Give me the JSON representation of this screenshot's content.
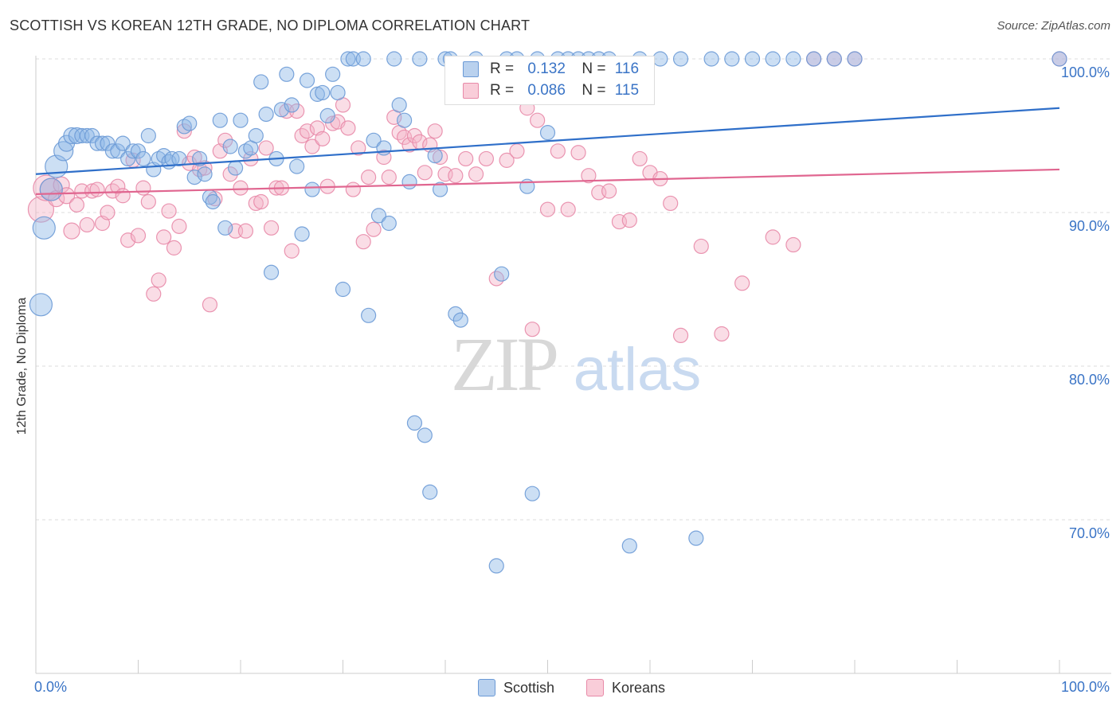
{
  "title": "SCOTTISH VS KOREAN 12TH GRADE, NO DIPLOMA CORRELATION CHART",
  "source": "Source: ZipAtlas.com",
  "colors": {
    "scottish": "#8fb8e6",
    "scottish_edge": "#6b9ad6",
    "korean": "#f4b3c7",
    "korean_edge": "#e88aa8",
    "scottish_line": "#2f6fc9",
    "korean_line": "#e06690",
    "axis_value": "#3a74c6",
    "grid": "#dddddd"
  },
  "legend": {
    "rows": [
      {
        "r_label": "R = ",
        "r_value": "0.132",
        "n_label": "N = ",
        "n_value": "116"
      },
      {
        "r_label": "R = ",
        "r_value": "0.086",
        "n_label": "N = ",
        "n_value": "115"
      }
    ]
  },
  "watermark": {
    "zip": "ZIP",
    "atlas": "atlas"
  },
  "chart_data": {
    "type": "scatter",
    "title": "SCOTTISH VS KOREAN 12TH GRADE, NO DIPLOMA CORRELATION CHART",
    "xlabel": "",
    "ylabel": "12th Grade, No Diploma",
    "xlim": [
      0,
      100
    ],
    "ylim": [
      60,
      101
    ],
    "x_tick_labels": [
      "0.0%",
      "100.0%"
    ],
    "y_ticks": [
      70,
      80,
      90,
      100
    ],
    "y_tick_labels": [
      "70.0%",
      "80.0%",
      "90.0%",
      "100.0%"
    ],
    "grid": true,
    "series": [
      {
        "name": "Scottish",
        "r": 0.132,
        "n": 116,
        "trend": [
          [
            0,
            92.5
          ],
          [
            100,
            96.8
          ]
        ],
        "points": [
          [
            0.5,
            84,
            14
          ],
          [
            0.8,
            89,
            14
          ],
          [
            1.5,
            91.5,
            14
          ],
          [
            2,
            93,
            14
          ],
          [
            2.7,
            94,
            12
          ],
          [
            3,
            94.5,
            10
          ],
          [
            3.5,
            95,
            10
          ],
          [
            4,
            95,
            10
          ],
          [
            4.5,
            95,
            9
          ],
          [
            5,
            95,
            9
          ],
          [
            5.5,
            95,
            9
          ],
          [
            6,
            94.5,
            9
          ],
          [
            6.5,
            94.5,
            9
          ],
          [
            7,
            94.5,
            9
          ],
          [
            7.5,
            94,
            9
          ],
          [
            8,
            94,
            9
          ],
          [
            8.5,
            94.5,
            9
          ],
          [
            9,
            93.5,
            9
          ],
          [
            9.5,
            94,
            9
          ],
          [
            10,
            94,
            9
          ],
          [
            10.5,
            93.5,
            9
          ],
          [
            11,
            95,
            9
          ],
          [
            11.5,
            92.8,
            9
          ],
          [
            12,
            93.5,
            9
          ],
          [
            12.5,
            93.7,
            9
          ],
          [
            13,
            93.3,
            9
          ],
          [
            13.3,
            93.5,
            9
          ],
          [
            14,
            93.5,
            9
          ],
          [
            14.5,
            95.6,
            9
          ],
          [
            15,
            95.8,
            9
          ],
          [
            15.5,
            92.3,
            9
          ],
          [
            16,
            93.5,
            9
          ],
          [
            16.5,
            92.5,
            9
          ],
          [
            17,
            91,
            9
          ],
          [
            17.3,
            90.7,
            9
          ],
          [
            18,
            96,
            9
          ],
          [
            18.5,
            89,
            9
          ],
          [
            19,
            94.3,
            9
          ],
          [
            19.5,
            92.9,
            9
          ],
          [
            20,
            96,
            9
          ],
          [
            20.5,
            94,
            9
          ],
          [
            21,
            94.2,
            9
          ],
          [
            21.5,
            95,
            9
          ],
          [
            22,
            98.5,
            9
          ],
          [
            22.5,
            96.4,
            9
          ],
          [
            23,
            86.1,
            9
          ],
          [
            23.5,
            93.5,
            9
          ],
          [
            24,
            96.7,
            9
          ],
          [
            24.5,
            99,
            9
          ],
          [
            25,
            97,
            9
          ],
          [
            25.5,
            93,
            9
          ],
          [
            26,
            88.6,
            9
          ],
          [
            26.5,
            98.6,
            9
          ],
          [
            27,
            91.5,
            9
          ],
          [
            27.5,
            97.7,
            9
          ],
          [
            28,
            97.8,
            9
          ],
          [
            28.5,
            96.3,
            9
          ],
          [
            29,
            99,
            9
          ],
          [
            29.5,
            97.8,
            9
          ],
          [
            30,
            85,
            9
          ],
          [
            30.5,
            100,
            9
          ],
          [
            31,
            100,
            9
          ],
          [
            32,
            100,
            9
          ],
          [
            32.5,
            83.3,
            9
          ],
          [
            33,
            94.7,
            9
          ],
          [
            33.5,
            89.8,
            9
          ],
          [
            34,
            94.2,
            9
          ],
          [
            34.5,
            89.3,
            9
          ],
          [
            35,
            100,
            9
          ],
          [
            35.5,
            97,
            9
          ],
          [
            36,
            96,
            9
          ],
          [
            36.5,
            92,
            9
          ],
          [
            37,
            76.3,
            9
          ],
          [
            37.5,
            100,
            9
          ],
          [
            38,
            75.5,
            9
          ],
          [
            38.5,
            71.8,
            9
          ],
          [
            39,
            93.7,
            9
          ],
          [
            39.5,
            91.5,
            9
          ],
          [
            40,
            100,
            9
          ],
          [
            40.5,
            100,
            9
          ],
          [
            41,
            83.4,
            9
          ],
          [
            41.5,
            83,
            9
          ],
          [
            42,
            97.5,
            9
          ],
          [
            43,
            100,
            9
          ],
          [
            44,
            98.5,
            9
          ],
          [
            45,
            67,
            9
          ],
          [
            45.5,
            86,
            9
          ],
          [
            46,
            100,
            9
          ],
          [
            47,
            100,
            9
          ],
          [
            48,
            91.7,
            9
          ],
          [
            48.5,
            71.7,
            9
          ],
          [
            49,
            100,
            9
          ],
          [
            50,
            95.2,
            9
          ],
          [
            51,
            100,
            9
          ],
          [
            52,
            100,
            9
          ],
          [
            53,
            100,
            9
          ],
          [
            54,
            100,
            9
          ],
          [
            55,
            100,
            9
          ],
          [
            56,
            100,
            9
          ],
          [
            58,
            68.3,
            9
          ],
          [
            59,
            100,
            9
          ],
          [
            61,
            100,
            9
          ],
          [
            63,
            100,
            9
          ],
          [
            64.5,
            68.8,
            9
          ],
          [
            66,
            100,
            9
          ],
          [
            68,
            100,
            9
          ],
          [
            70,
            100,
            9
          ],
          [
            72,
            100,
            9
          ],
          [
            74,
            100,
            9
          ],
          [
            76,
            100,
            9
          ],
          [
            78,
            100,
            9
          ],
          [
            80,
            100,
            9
          ],
          [
            100,
            100,
            9
          ]
        ]
      },
      {
        "name": "Koreans",
        "r": 0.086,
        "n": 115,
        "trend": [
          [
            0,
            91.2
          ],
          [
            100,
            92.8
          ]
        ],
        "points": [
          [
            0.5,
            90.2,
            16
          ],
          [
            1,
            91.6,
            16
          ],
          [
            1.5,
            91.5,
            14
          ],
          [
            2,
            90.9,
            10
          ],
          [
            2.5,
            91.8,
            10
          ],
          [
            3,
            91.1,
            10
          ],
          [
            3.5,
            88.8,
            10
          ],
          [
            4,
            90.5,
            9
          ],
          [
            4.5,
            91.4,
            9
          ],
          [
            5,
            89.2,
            9
          ],
          [
            5.5,
            91.4,
            9
          ],
          [
            6,
            91.5,
            9
          ],
          [
            6.5,
            89.3,
            9
          ],
          [
            7,
            90,
            9
          ],
          [
            7.5,
            91.4,
            9
          ],
          [
            8,
            91.7,
            9
          ],
          [
            8.5,
            91.1,
            9
          ],
          [
            9,
            88.2,
            9
          ],
          [
            9.5,
            93.4,
            9
          ],
          [
            10,
            88.5,
            9
          ],
          [
            10.5,
            91.6,
            9
          ],
          [
            11,
            90.7,
            9
          ],
          [
            11.5,
            84.7,
            9
          ],
          [
            12,
            85.6,
            9
          ],
          [
            12.5,
            88.4,
            9
          ],
          [
            13,
            90.1,
            9
          ],
          [
            13.5,
            87.7,
            9
          ],
          [
            14,
            89.1,
            9
          ],
          [
            14.5,
            95.3,
            9
          ],
          [
            15,
            93.2,
            9
          ],
          [
            15.5,
            93.6,
            9
          ],
          [
            16,
            92.8,
            9
          ],
          [
            16.5,
            92.9,
            9
          ],
          [
            17,
            84,
            9
          ],
          [
            17.5,
            90.9,
            9
          ],
          [
            18,
            94,
            9
          ],
          [
            18.5,
            94.7,
            9
          ],
          [
            19,
            92.5,
            9
          ],
          [
            19.5,
            88.8,
            9
          ],
          [
            20,
            91.6,
            9
          ],
          [
            20.5,
            88.8,
            9
          ],
          [
            21,
            93.5,
            9
          ],
          [
            21.5,
            90.6,
            9
          ],
          [
            22,
            90.7,
            9
          ],
          [
            22.5,
            94.2,
            9
          ],
          [
            23,
            89,
            9
          ],
          [
            23.5,
            91.6,
            9
          ],
          [
            24,
            91.6,
            9
          ],
          [
            24.5,
            96.6,
            9
          ],
          [
            25,
            87.5,
            9
          ],
          [
            25.5,
            96.6,
            9
          ],
          [
            26,
            95,
            9
          ],
          [
            26.5,
            95.3,
            9
          ],
          [
            27,
            94.3,
            9
          ],
          [
            27.5,
            95.5,
            9
          ],
          [
            28,
            94.8,
            9
          ],
          [
            28.5,
            91.7,
            9
          ],
          [
            29,
            95.8,
            9
          ],
          [
            29.5,
            95.9,
            9
          ],
          [
            30,
            97,
            9
          ],
          [
            30.5,
            95.5,
            9
          ],
          [
            31,
            91.5,
            9
          ],
          [
            31.5,
            94.2,
            9
          ],
          [
            32,
            88.1,
            9
          ],
          [
            32.5,
            92.3,
            9
          ],
          [
            33,
            88.9,
            9
          ],
          [
            34,
            93.6,
            9
          ],
          [
            34.5,
            92.3,
            9
          ],
          [
            35,
            96.2,
            9
          ],
          [
            35.5,
            95.2,
            9
          ],
          [
            36,
            94.9,
            9
          ],
          [
            36.5,
            94.4,
            9
          ],
          [
            37,
            95,
            9
          ],
          [
            37.5,
            94.6,
            9
          ],
          [
            38,
            92.6,
            9
          ],
          [
            38.5,
            94.4,
            9
          ],
          [
            39,
            95.3,
            9
          ],
          [
            39.5,
            93.6,
            9
          ],
          [
            40,
            92.5,
            9
          ],
          [
            41,
            92.4,
            9
          ],
          [
            42,
            93.5,
            9
          ],
          [
            43,
            92.5,
            9
          ],
          [
            44,
            93.5,
            9
          ],
          [
            45,
            85.7,
            9
          ],
          [
            46,
            93.4,
            9
          ],
          [
            47,
            94,
            9
          ],
          [
            48,
            96.8,
            9
          ],
          [
            48.5,
            82.4,
            9
          ],
          [
            49,
            96,
            9
          ],
          [
            50,
            90.2,
            9
          ],
          [
            51,
            94,
            9
          ],
          [
            52,
            90.2,
            9
          ],
          [
            53,
            93.9,
            9
          ],
          [
            54,
            92.4,
            9
          ],
          [
            55,
            91.3,
            9
          ],
          [
            56,
            91.4,
            9
          ],
          [
            57,
            89.4,
            9
          ],
          [
            58,
            89.5,
            9
          ],
          [
            59,
            93.5,
            9
          ],
          [
            60,
            92.6,
            9
          ],
          [
            61,
            92.2,
            9
          ],
          [
            62,
            90.6,
            9
          ],
          [
            63,
            82,
            9
          ],
          [
            65,
            87.8,
            9
          ],
          [
            67,
            82.1,
            9
          ],
          [
            69,
            85.4,
            9
          ],
          [
            72,
            88.4,
            9
          ],
          [
            74,
            87.9,
            9
          ],
          [
            76,
            100,
            9
          ],
          [
            78,
            100,
            9
          ],
          [
            80,
            100,
            9
          ],
          [
            100,
            100,
            9
          ]
        ]
      }
    ]
  }
}
